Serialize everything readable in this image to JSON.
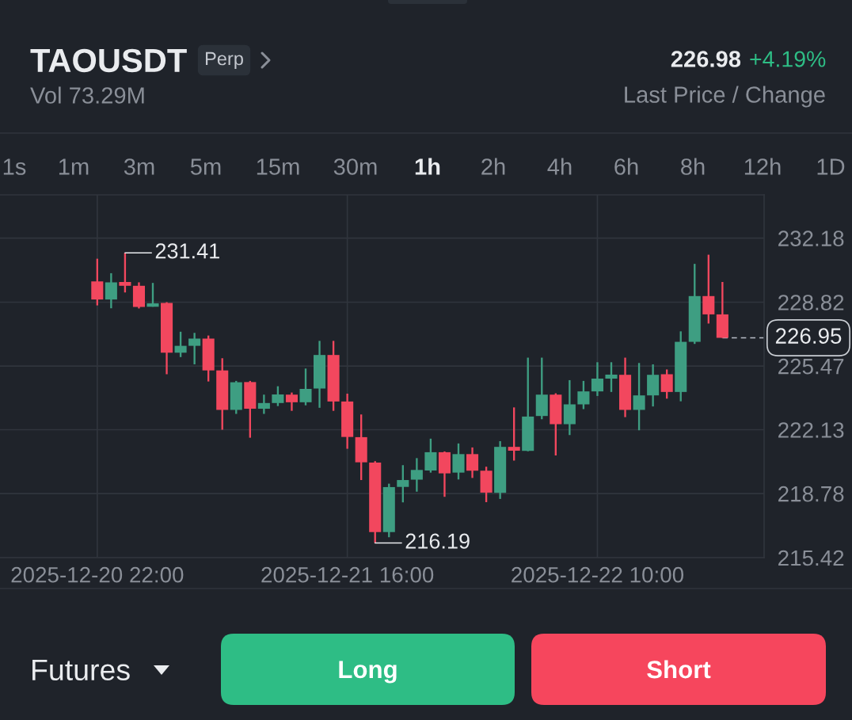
{
  "chart_data": {
    "type": "candlestick",
    "title": "TAOUSDT",
    "subtitle": "Vol 73.29M",
    "x": [
      "2025-12-20T22:00",
      "2025-12-20T23:00",
      "2025-12-21T00:00",
      "2025-12-21T01:00",
      "2025-12-21T02:00",
      "2025-12-21T03:00",
      "2025-12-21T04:00",
      "2025-12-21T05:00",
      "2025-12-21T06:00",
      "2025-12-21T07:00",
      "2025-12-21T08:00",
      "2025-12-21T09:00",
      "2025-12-21T10:00",
      "2025-12-21T11:00",
      "2025-12-21T12:00",
      "2025-12-21T13:00",
      "2025-12-21T14:00",
      "2025-12-21T15:00",
      "2025-12-21T16:00",
      "2025-12-21T17:00",
      "2025-12-21T18:00",
      "2025-12-21T19:00",
      "2025-12-21T20:00",
      "2025-12-21T21:00",
      "2025-12-21T22:00",
      "2025-12-21T23:00",
      "2025-12-22T00:00",
      "2025-12-22T01:00",
      "2025-12-22T02:00",
      "2025-12-22T03:00",
      "2025-12-22T04:00",
      "2025-12-22T05:00",
      "2025-12-22T06:00",
      "2025-12-22T07:00",
      "2025-12-22T08:00",
      "2025-12-22T09:00",
      "2025-12-22T10:00",
      "2025-12-22T11:00",
      "2025-12-22T12:00",
      "2025-12-22T13:00",
      "2025-12-22T14:00",
      "2025-12-22T15:00",
      "2025-12-22T16:00",
      "2025-12-22T17:00",
      "2025-12-22T18:00",
      "2025-12-22T19:00"
    ],
    "ohlc": [
      [
        229.91,
        231.1,
        228.65,
        228.96
      ],
      [
        228.96,
        230.34,
        228.5,
        229.86
      ],
      [
        229.88,
        231.41,
        229.33,
        229.68
      ],
      [
        229.68,
        229.86,
        228.49,
        228.57
      ],
      [
        228.58,
        229.83,
        228.58,
        228.76
      ],
      [
        228.78,
        228.82,
        225.04,
        226.17
      ],
      [
        226.17,
        227.27,
        225.94,
        226.53
      ],
      [
        226.53,
        227.21,
        225.56,
        226.91
      ],
      [
        226.91,
        227.07,
        224.66,
        225.24
      ],
      [
        225.24,
        225.88,
        222.13,
        223.17
      ],
      [
        223.17,
        224.69,
        222.96,
        224.62
      ],
      [
        224.63,
        224.69,
        221.71,
        223.23
      ],
      [
        223.23,
        223.97,
        222.96,
        223.53
      ],
      [
        223.53,
        224.41,
        223.37,
        223.98
      ],
      [
        223.97,
        224.08,
        223.12,
        223.57
      ],
      [
        223.57,
        225.34,
        223.41,
        224.27
      ],
      [
        224.29,
        226.79,
        223.28,
        226.05
      ],
      [
        226.05,
        226.79,
        223.12,
        223.61
      ],
      [
        223.61,
        224.02,
        221.13,
        221.75
      ],
      [
        221.74,
        222.93,
        219.49,
        220.42
      ],
      [
        220.41,
        220.48,
        216.19,
        216.76
      ],
      [
        216.76,
        219.3,
        216.49,
        219.12
      ],
      [
        219.13,
        220.27,
        218.32,
        219.49
      ],
      [
        219.51,
        220.64,
        218.88,
        220.02
      ],
      [
        219.99,
        221.66,
        219.88,
        220.95
      ],
      [
        220.95,
        220.99,
        218.61,
        219.84
      ],
      [
        219.88,
        221.41,
        219.52,
        220.85
      ],
      [
        220.85,
        221.2,
        219.6,
        219.98
      ],
      [
        219.98,
        220.19,
        218.33,
        218.83
      ],
      [
        218.82,
        221.53,
        218.5,
        221.23
      ],
      [
        221.23,
        223.3,
        220.51,
        221.03
      ],
      [
        221.02,
        225.91,
        221.0,
        222.82
      ],
      [
        222.85,
        225.91,
        222.68,
        223.97
      ],
      [
        223.97,
        224.04,
        220.78,
        222.42
      ],
      [
        222.42,
        224.73,
        221.85,
        223.46
      ],
      [
        223.46,
        224.69,
        223.21,
        224.14
      ],
      [
        224.14,
        225.67,
        223.9,
        224.81
      ],
      [
        224.81,
        225.67,
        224.11,
        225.02
      ],
      [
        225.01,
        225.91,
        222.79,
        223.17
      ],
      [
        223.17,
        225.63,
        222.1,
        223.93
      ],
      [
        223.93,
        225.56,
        223.35,
        225.01
      ],
      [
        225.04,
        225.29,
        223.76,
        224.11
      ],
      [
        224.11,
        227.29,
        223.62,
        226.74
      ],
      [
        226.74,
        230.83,
        226.63,
        229.14
      ],
      [
        229.14,
        231.31,
        227.7,
        228.18
      ],
      [
        228.18,
        229.88,
        226.95,
        226.95
      ]
    ],
    "colors": [
      "#f2475e",
      "#3e9e82",
      "#f2475e",
      "#f2475e",
      "#3e9e82",
      "#f2475e",
      "#3e9e82",
      "#3e9e82",
      "#f2475e",
      "#f2475e",
      "#3e9e82",
      "#f2475e",
      "#3e9e82",
      "#3e9e82",
      "#f2475e",
      "#3e9e82",
      "#3e9e82",
      "#f2475e",
      "#f2475e",
      "#f2475e",
      "#f2475e",
      "#3e9e82",
      "#3e9e82",
      "#3e9e82",
      "#3e9e82",
      "#f2475e",
      "#3e9e82",
      "#f2475e",
      "#f2475e",
      "#3e9e82",
      "#f2475e",
      "#3e9e82",
      "#3e9e82",
      "#f2475e",
      "#3e9e82",
      "#3e9e82",
      "#3e9e82",
      "#3e9e82",
      "#f2475e",
      "#3e9e82",
      "#3e9e82",
      "#f2475e",
      "#3e9e82",
      "#3e9e82",
      "#f2475e",
      "#f2475e"
    ],
    "xlim": [
      "2025-12-20T15:00",
      "2025-12-22T22:00"
    ],
    "xticks": [
      {
        "value": "2025-12-20T22:00",
        "label": "2025-12-20 22:00"
      },
      {
        "value": "2025-12-21T16:00",
        "label": "2025-12-21 16:00"
      },
      {
        "value": "2025-12-22T10:00",
        "label": "2025-12-22 10:00"
      }
    ],
    "ylim": [
      215.42,
      234.45
    ],
    "yticks": [
      232.18,
      228.82,
      225.47,
      222.13,
      218.78,
      215.42
    ],
    "grid": true,
    "ref_lines": [
      {
        "axis": "y",
        "value": 226.95,
        "label": "226.95",
        "line_style": "dashed",
        "color": "#b7bdc6"
      }
    ],
    "annotations": [
      "Perp",
      "226.98",
      "+4.19%",
      "Last Price / Change",
      "1s",
      "1m",
      "3m",
      "5m",
      "15m",
      "30m",
      "1h",
      "2h",
      "4h",
      "6h",
      "8h",
      "12h",
      "1D",
      {
        "text": "231.41",
        "x": "2025-12-21T00:00",
        "y": 231.41
      },
      {
        "text": "216.19",
        "x": "2025-12-21T18:00",
        "y": 216.19
      },
      "Futures",
      "Long",
      "Short"
    ]
  }
}
